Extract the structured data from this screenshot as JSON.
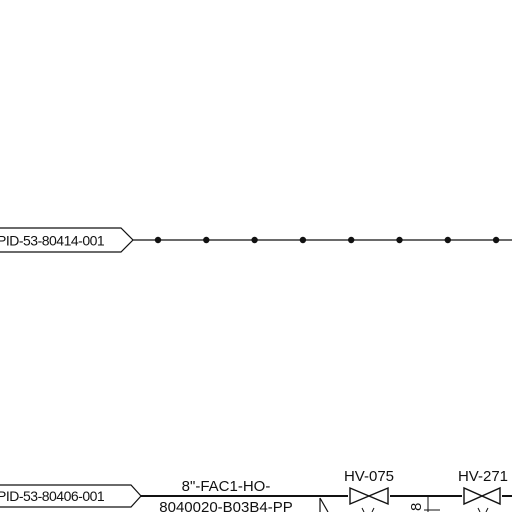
{
  "diagram": {
    "upper_line": {
      "offpage_ref": "PID-53-80414-001",
      "dot_count": 8,
      "line_style": "dash-dot"
    },
    "lower_line": {
      "offpage_ref": "PID-53-80406-001",
      "line_label_1": "8\"-FAC1-HO-",
      "line_label_2": "8040020-B03B4-PP",
      "valves": [
        {
          "tag": "HV-075",
          "type": "gate"
        },
        {
          "tag": "HV-271",
          "type": "gate"
        }
      ],
      "small_label": "8"
    }
  }
}
